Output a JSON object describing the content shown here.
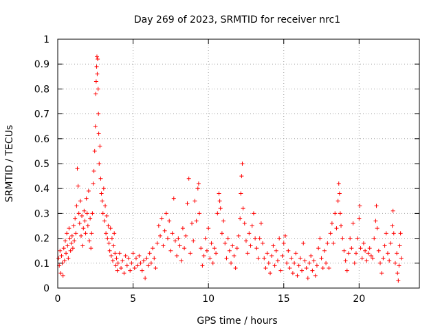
{
  "chart_data": {
    "type": "scatter",
    "title": "Day 269 of 2023, SRMTID for receiver nrc1",
    "xlabel": "GPS time / hours",
    "ylabel": "SRMTID / TECUs",
    "xlim": [
      0,
      24
    ],
    "ylim": [
      0,
      1
    ],
    "xticks": [
      0,
      5,
      10,
      15,
      20
    ],
    "yticks": [
      0,
      0.1,
      0.2,
      0.3,
      0.4,
      0.5,
      0.6,
      0.7,
      0.8,
      0.9,
      1
    ],
    "ytick_labels": [
      "0",
      "0.1",
      "0.2",
      "0.3",
      "0.4",
      "0.5",
      "0.6",
      "0.7",
      "0.8",
      "0.9",
      "1"
    ],
    "grid": true,
    "marker": "+",
    "color": "#ff0000",
    "series": [
      {
        "name": "nrc1",
        "points": [
          [
            0.05,
            0.12
          ],
          [
            0.1,
            0.09
          ],
          [
            0.15,
            0.15
          ],
          [
            0.2,
            0.06
          ],
          [
            0.25,
            0.13
          ],
          [
            0.3,
            0.1
          ],
          [
            0.35,
            0.05
          ],
          [
            0.4,
            0.16
          ],
          [
            0.45,
            0.11
          ],
          [
            0.5,
            0.19
          ],
          [
            0.55,
            0.14
          ],
          [
            0.6,
            0.22
          ],
          [
            0.65,
            0.17
          ],
          [
            0.7,
            0.12
          ],
          [
            0.75,
            0.24
          ],
          [
            0.8,
            0.2
          ],
          [
            0.85,
            0.15
          ],
          [
            0.9,
            0.18
          ],
          [
            0.95,
            0.21
          ],
          [
            1.0,
            0.16
          ],
          [
            1.05,
            0.25
          ],
          [
            1.1,
            0.19
          ],
          [
            1.15,
            0.28
          ],
          [
            1.2,
            0.22
          ],
          [
            1.25,
            0.33
          ],
          [
            1.3,
            0.48
          ],
          [
            1.35,
            0.41
          ],
          [
            1.4,
            0.3
          ],
          [
            1.45,
            0.26
          ],
          [
            1.5,
            0.35
          ],
          [
            1.55,
            0.21
          ],
          [
            1.6,
            0.29
          ],
          [
            1.65,
            0.17
          ],
          [
            1.7,
            0.24
          ],
          [
            1.75,
            0.31
          ],
          [
            1.8,
            0.27
          ],
          [
            1.85,
            0.22
          ],
          [
            1.9,
            0.36
          ],
          [
            1.95,
            0.3
          ],
          [
            2.0,
            0.25
          ],
          [
            2.05,
            0.39
          ],
          [
            2.1,
            0.19
          ],
          [
            2.15,
            0.28
          ],
          [
            2.2,
            0.16
          ],
          [
            2.25,
            0.22
          ],
          [
            2.3,
            0.3
          ],
          [
            2.35,
            0.42
          ],
          [
            2.4,
            0.47
          ],
          [
            2.45,
            0.55
          ],
          [
            2.5,
            0.65
          ],
          [
            2.52,
            0.78
          ],
          [
            2.55,
            0.83
          ],
          [
            2.58,
            0.89
          ],
          [
            2.6,
            0.93
          ],
          [
            2.62,
            0.86
          ],
          [
            2.65,
            0.92
          ],
          [
            2.68,
            0.8
          ],
          [
            2.7,
            0.7
          ],
          [
            2.72,
            0.62
          ],
          [
            2.75,
            0.5
          ],
          [
            2.8,
            0.57
          ],
          [
            2.85,
            0.44
          ],
          [
            2.9,
            0.38
          ],
          [
            2.95,
            0.35
          ],
          [
            3.0,
            0.3
          ],
          [
            3.05,
            0.4
          ],
          [
            3.1,
            0.27
          ],
          [
            3.15,
            0.33
          ],
          [
            3.2,
            0.22
          ],
          [
            3.25,
            0.29
          ],
          [
            3.3,
            0.2
          ],
          [
            3.35,
            0.25
          ],
          [
            3.4,
            0.18
          ],
          [
            3.45,
            0.15
          ],
          [
            3.5,
            0.24
          ],
          [
            3.55,
            0.13
          ],
          [
            3.6,
            0.2
          ],
          [
            3.65,
            0.11
          ],
          [
            3.7,
            0.17
          ],
          [
            3.75,
            0.22
          ],
          [
            3.8,
            0.14
          ],
          [
            3.85,
            0.09
          ],
          [
            3.9,
            0.12
          ],
          [
            3.95,
            0.07
          ],
          [
            4.0,
            0.1
          ],
          [
            4.1,
            0.14
          ],
          [
            4.2,
            0.08
          ],
          [
            4.3,
            0.11
          ],
          [
            4.4,
            0.06
          ],
          [
            4.5,
            0.13
          ],
          [
            4.6,
            0.09
          ],
          [
            4.7,
            0.12
          ],
          [
            4.8,
            0.07
          ],
          [
            4.9,
            0.1
          ],
          [
            5.0,
            0.14
          ],
          [
            5.1,
            0.08
          ],
          [
            5.2,
            0.12
          ],
          [
            5.3,
            0.09
          ],
          [
            5.4,
            0.13
          ],
          [
            5.5,
            0.1
          ],
          [
            5.6,
            0.07
          ],
          [
            5.7,
            0.11
          ],
          [
            5.8,
            0.04
          ],
          [
            5.9,
            0.12
          ],
          [
            6.0,
            0.09
          ],
          [
            6.1,
            0.14
          ],
          [
            6.2,
            0.1
          ],
          [
            6.3,
            0.16
          ],
          [
            6.4,
            0.12
          ],
          [
            6.5,
            0.08
          ],
          [
            6.6,
            0.18
          ],
          [
            6.7,
            0.25
          ],
          [
            6.8,
            0.21
          ],
          [
            6.9,
            0.28
          ],
          [
            7.0,
            0.17
          ],
          [
            7.1,
            0.23
          ],
          [
            7.2,
            0.3
          ],
          [
            7.3,
            0.2
          ],
          [
            7.4,
            0.27
          ],
          [
            7.5,
            0.15
          ],
          [
            7.6,
            0.22
          ],
          [
            7.7,
            0.36
          ],
          [
            7.8,
            0.19
          ],
          [
            7.9,
            0.13
          ],
          [
            8.0,
            0.2
          ],
          [
            8.1,
            0.17
          ],
          [
            8.2,
            0.11
          ],
          [
            8.3,
            0.24
          ],
          [
            8.4,
            0.16
          ],
          [
            8.5,
            0.21
          ],
          [
            8.6,
            0.34
          ],
          [
            8.7,
            0.44
          ],
          [
            8.8,
            0.14
          ],
          [
            8.9,
            0.26
          ],
          [
            9.0,
            0.19
          ],
          [
            9.1,
            0.35
          ],
          [
            9.2,
            0.27
          ],
          [
            9.3,
            0.4
          ],
          [
            9.35,
            0.42
          ],
          [
            9.4,
            0.3
          ],
          [
            9.5,
            0.16
          ],
          [
            9.6,
            0.09
          ],
          [
            9.7,
            0.13
          ],
          [
            9.8,
            0.2
          ],
          [
            9.9,
            0.15
          ],
          [
            10.0,
            0.24
          ],
          [
            10.1,
            0.12
          ],
          [
            10.2,
            0.18
          ],
          [
            10.3,
            0.1
          ],
          [
            10.4,
            0.16
          ],
          [
            10.5,
            0.14
          ],
          [
            10.6,
            0.3
          ],
          [
            10.7,
            0.38
          ],
          [
            10.75,
            0.35
          ],
          [
            10.8,
            0.32
          ],
          [
            10.9,
            0.22
          ],
          [
            11.0,
            0.27
          ],
          [
            11.1,
            0.18
          ],
          [
            11.2,
            0.12
          ],
          [
            11.3,
            0.2
          ],
          [
            11.4,
            0.15
          ],
          [
            11.5,
            0.1
          ],
          [
            11.6,
            0.17
          ],
          [
            11.7,
            0.13
          ],
          [
            11.8,
            0.08
          ],
          [
            11.9,
            0.16
          ],
          [
            12.0,
            0.21
          ],
          [
            12.1,
            0.28
          ],
          [
            12.15,
            0.38
          ],
          [
            12.2,
            0.45
          ],
          [
            12.25,
            0.5
          ],
          [
            12.3,
            0.32
          ],
          [
            12.4,
            0.26
          ],
          [
            12.5,
            0.19
          ],
          [
            12.6,
            0.14
          ],
          [
            12.7,
            0.22
          ],
          [
            12.8,
            0.17
          ],
          [
            12.9,
            0.25
          ],
          [
            13.0,
            0.3
          ],
          [
            13.1,
            0.2
          ],
          [
            13.2,
            0.16
          ],
          [
            13.3,
            0.12
          ],
          [
            13.4,
            0.2
          ],
          [
            13.5,
            0.26
          ],
          [
            13.6,
            0.18
          ],
          [
            13.7,
            0.12
          ],
          [
            13.8,
            0.08
          ],
          [
            13.9,
            0.14
          ],
          [
            14.0,
            0.1
          ],
          [
            14.1,
            0.06
          ],
          [
            14.2,
            0.13
          ],
          [
            14.3,
            0.17
          ],
          [
            14.4,
            0.09
          ],
          [
            14.5,
            0.15
          ],
          [
            14.6,
            0.11
          ],
          [
            14.7,
            0.2
          ],
          [
            14.8,
            0.07
          ],
          [
            14.9,
            0.13
          ],
          [
            15.0,
            0.18
          ],
          [
            15.1,
            0.21
          ],
          [
            15.2,
            0.1
          ],
          [
            15.3,
            0.15
          ],
          [
            15.4,
            0.08
          ],
          [
            15.5,
            0.12
          ],
          [
            15.6,
            0.06
          ],
          [
            15.7,
            0.1
          ],
          [
            15.8,
            0.14
          ],
          [
            15.9,
            0.05
          ],
          [
            16.0,
            0.09
          ],
          [
            16.1,
            0.12
          ],
          [
            16.2,
            0.07
          ],
          [
            16.3,
            0.18
          ],
          [
            16.4,
            0.11
          ],
          [
            16.5,
            0.08
          ],
          [
            16.6,
            0.04
          ],
          [
            16.7,
            0.1
          ],
          [
            16.8,
            0.13
          ],
          [
            16.9,
            0.07
          ],
          [
            17.0,
            0.11
          ],
          [
            17.1,
            0.05
          ],
          [
            17.2,
            0.09
          ],
          [
            17.3,
            0.16
          ],
          [
            17.4,
            0.2
          ],
          [
            17.5,
            0.12
          ],
          [
            17.6,
            0.08
          ],
          [
            17.7,
            0.15
          ],
          [
            17.8,
            0.1
          ],
          [
            17.9,
            0.18
          ],
          [
            18.0,
            0.08
          ],
          [
            18.1,
            0.22
          ],
          [
            18.2,
            0.26
          ],
          [
            18.3,
            0.18
          ],
          [
            18.4,
            0.3
          ],
          [
            18.5,
            0.24
          ],
          [
            18.6,
            0.35
          ],
          [
            18.65,
            0.42
          ],
          [
            18.7,
            0.38
          ],
          [
            18.75,
            0.3
          ],
          [
            18.8,
            0.25
          ],
          [
            18.9,
            0.2
          ],
          [
            19.0,
            0.15
          ],
          [
            19.1,
            0.11
          ],
          [
            19.2,
            0.07
          ],
          [
            19.3,
            0.14
          ],
          [
            19.4,
            0.2
          ],
          [
            19.5,
            0.16
          ],
          [
            19.6,
            0.26
          ],
          [
            19.7,
            0.1
          ],
          [
            19.8,
            0.14
          ],
          [
            19.9,
            0.2
          ],
          [
            20.0,
            0.28
          ],
          [
            20.05,
            0.33
          ],
          [
            20.1,
            0.16
          ],
          [
            20.2,
            0.12
          ],
          [
            20.3,
            0.18
          ],
          [
            20.4,
            0.15
          ],
          [
            20.5,
            0.11
          ],
          [
            20.6,
            0.14
          ],
          [
            20.7,
            0.16
          ],
          [
            20.8,
            0.13
          ],
          [
            20.9,
            0.12
          ],
          [
            21.0,
            0.2
          ],
          [
            21.1,
            0.27
          ],
          [
            21.15,
            0.33
          ],
          [
            21.2,
            0.24
          ],
          [
            21.3,
            0.15
          ],
          [
            21.4,
            0.1
          ],
          [
            21.5,
            0.06
          ],
          [
            21.6,
            0.12
          ],
          [
            21.7,
            0.17
          ],
          [
            21.8,
            0.22
          ],
          [
            21.9,
            0.14
          ],
          [
            22.0,
            0.11
          ],
          [
            22.1,
            0.18
          ],
          [
            22.2,
            0.25
          ],
          [
            22.25,
            0.31
          ],
          [
            22.3,
            0.22
          ],
          [
            22.4,
            0.1
          ],
          [
            22.5,
            0.14
          ],
          [
            22.55,
            0.06
          ],
          [
            22.6,
            0.03
          ],
          [
            22.65,
            0.09
          ],
          [
            22.7,
            0.17
          ],
          [
            22.75,
            0.22
          ],
          [
            22.8,
            0.12
          ]
        ]
      }
    ]
  }
}
